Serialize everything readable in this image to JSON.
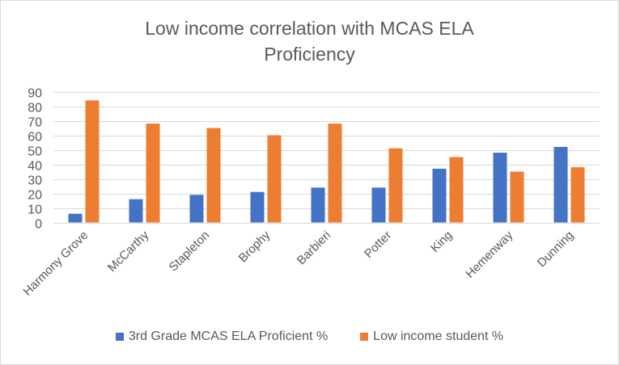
{
  "chart_data": {
    "type": "bar",
    "title_lines": [
      "Low income correlation with MCAS ELA",
      "Proficiency"
    ],
    "xlabel": "",
    "ylabel": "",
    "ylim": [
      0,
      90
    ],
    "yticks": [
      0,
      10,
      20,
      30,
      40,
      50,
      60,
      70,
      80,
      90
    ],
    "grid": true,
    "legend_position": "bottom",
    "categories": [
      "Harmony Grove",
      "McCarthy",
      "Stapleton",
      "Brophy",
      "Barbieri",
      "Potter",
      "King",
      "Hemenway",
      "Dunning"
    ],
    "series": [
      {
        "name": "3rd Grade MCAS ELA Proficient %",
        "color": "#4472c4",
        "values": [
          6,
          16,
          19,
          21,
          24,
          24,
          37,
          48,
          52
        ]
      },
      {
        "name": "Low income student %",
        "color": "#ed7d31",
        "values": [
          84,
          68,
          65,
          60,
          68,
          51,
          45,
          35,
          38
        ]
      }
    ]
  }
}
